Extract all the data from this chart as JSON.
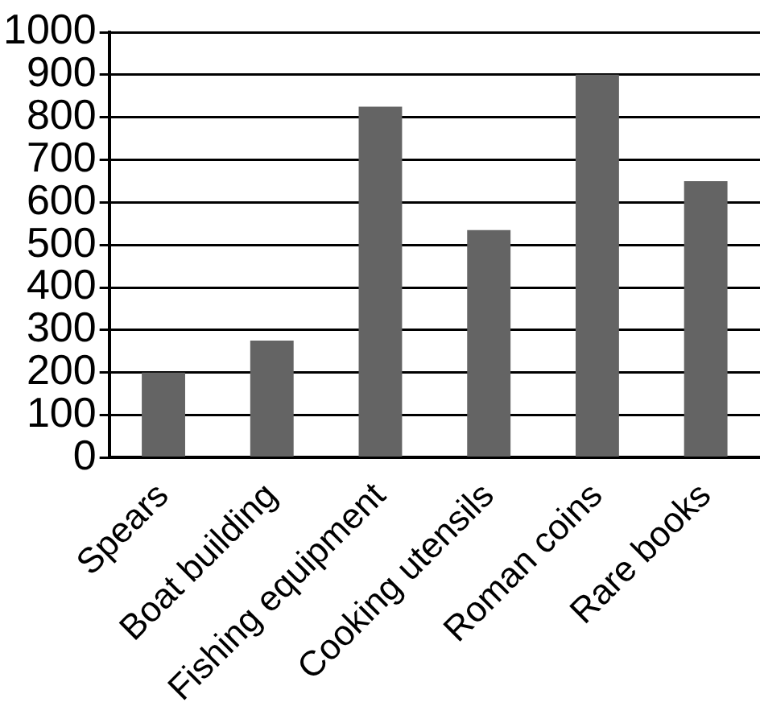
{
  "chart_data": {
    "type": "bar",
    "categories": [
      "Spears",
      "Boat building",
      "Fishing equipment",
      "Cooking utensils",
      "Roman coins",
      "Rare books"
    ],
    "values": [
      200,
      275,
      825,
      535,
      900,
      650
    ],
    "color": "#646464",
    "ylim": [
      0,
      1000
    ],
    "yticks": [
      0,
      100,
      200,
      300,
      400,
      500,
      600,
      700,
      800,
      900,
      1000
    ],
    "grid": "y"
  }
}
